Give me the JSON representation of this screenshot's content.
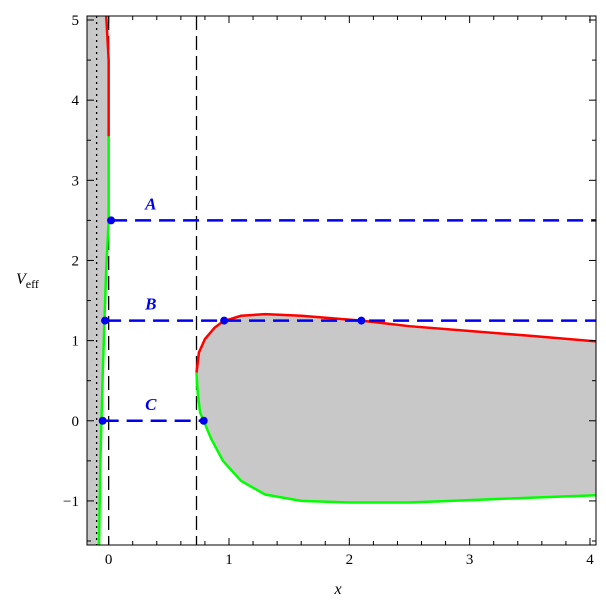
{
  "chart_data": {
    "type": "line",
    "title": "",
    "xlabel": "x",
    "ylabel": "V",
    "ylabel_sub": "eff",
    "xlim": [
      -0.18,
      4.05
    ],
    "ylim": [
      -1.55,
      5.05
    ],
    "grid": false,
    "x_ticks": [
      0,
      1,
      2,
      3,
      4
    ],
    "x_tick_labels": [
      "0",
      "1",
      "2",
      "3",
      "4"
    ],
    "y_ticks": [
      -1,
      0,
      1,
      2,
      3,
      4,
      5
    ],
    "y_tick_labels": [
      "−1",
      "0",
      "1",
      "2",
      "3",
      "4",
      "5"
    ],
    "colors": {
      "upper_branch": "#ff0000",
      "lower_branch": "#00ff00",
      "levels": "#0000ee",
      "forbidden_fill": "#c8c8c8",
      "axes": "#000000"
    },
    "vertical_lines": [
      {
        "x": -0.1,
        "style": "dotted"
      },
      {
        "x": 0.0,
        "style": "dashed"
      },
      {
        "x": 0.73,
        "style": "dashed"
      }
    ],
    "shaded_strip": {
      "x": [
        -0.18,
        -0.1
      ]
    },
    "inner_strip_points": [
      [
        -0.02,
        5.05
      ],
      [
        0.0,
        4.5
      ],
      [
        0.0,
        3.55
      ],
      [
        0.0,
        3.0
      ],
      [
        0.0,
        2.5
      ],
      [
        -0.02,
        1.9
      ],
      [
        -0.035,
        1.25
      ],
      [
        -0.05,
        0.55
      ],
      [
        -0.06,
        0.0
      ],
      [
        -0.07,
        -0.6
      ],
      [
        -0.08,
        -1.55
      ]
    ],
    "outer_upper_branch": [
      [
        0.73,
        0.6
      ],
      [
        0.75,
        0.85
      ],
      [
        0.8,
        1.02
      ],
      [
        0.88,
        1.16
      ],
      [
        0.95,
        1.24
      ],
      [
        1.1,
        1.31
      ],
      [
        1.3,
        1.33
      ],
      [
        1.6,
        1.31
      ],
      [
        2.1,
        1.25
      ],
      [
        2.5,
        1.18
      ],
      [
        3.0,
        1.12
      ],
      [
        3.5,
        1.06
      ],
      [
        4.05,
        0.99
      ]
    ],
    "outer_lower_branch": [
      [
        0.73,
        0.6
      ],
      [
        0.74,
        0.35
      ],
      [
        0.76,
        0.1
      ],
      [
        0.79,
        0.0
      ],
      [
        0.85,
        -0.22
      ],
      [
        0.95,
        -0.5
      ],
      [
        1.1,
        -0.75
      ],
      [
        1.3,
        -0.92
      ],
      [
        1.6,
        -1.0
      ],
      [
        2.0,
        -1.02
      ],
      [
        2.5,
        -1.02
      ],
      [
        3.0,
        -0.99
      ],
      [
        3.5,
        -0.96
      ],
      [
        4.05,
        -0.93
      ]
    ],
    "energy_levels": [
      {
        "label": "A",
        "y": 2.5,
        "x_start": 0.02,
        "x_end": 4.05,
        "points_x": [
          0.02
        ]
      },
      {
        "label": "B",
        "y": 1.25,
        "x_start": -0.03,
        "x_end": 4.05,
        "points_x": [
          -0.03,
          0.96,
          2.1
        ]
      },
      {
        "label": "C",
        "y": 0.0,
        "x_start": -0.05,
        "x_end": 0.79,
        "points_x": [
          -0.05,
          0.79
        ]
      }
    ]
  }
}
